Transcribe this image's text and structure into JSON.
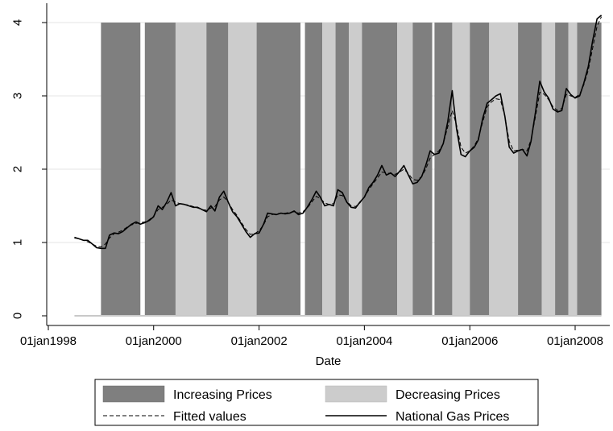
{
  "chart_data": {
    "type": "area",
    "xlabel": "Date",
    "ylabel": "",
    "xlim": [
      "1998-01-01",
      "2008-07-01"
    ],
    "ylim": [
      0,
      4.1
    ],
    "x_ticks": [
      "01jan1998",
      "01jan2000",
      "01jan2002",
      "01jan2004",
      "01jan2006",
      "01jan2008"
    ],
    "y_ticks": [
      "0",
      "1",
      "2",
      "3",
      "4"
    ],
    "grid": "horizontal",
    "legend_position": "bottom",
    "colors": {
      "increasing": "#7f7f7f",
      "decreasing": "#cccccc",
      "line": "#000000",
      "grid": "#e6e6e6"
    },
    "legend": {
      "increasing": "Increasing Prices",
      "decreasing": "Decreasing Prices",
      "fitted": "Fitted values",
      "actual": "National Gas Prices"
    },
    "band_height": 4,
    "bands": [
      {
        "start": "1999-01-01",
        "end": "1999-10-01",
        "type": "increasing"
      },
      {
        "start": "1999-11-01",
        "end": "2000-06-01",
        "type": "increasing"
      },
      {
        "start": "2000-06-01",
        "end": "2001-01-01",
        "type": "decreasing"
      },
      {
        "start": "2001-01-01",
        "end": "2001-06-01",
        "type": "increasing"
      },
      {
        "start": "2001-06-01",
        "end": "2001-12-15",
        "type": "decreasing"
      },
      {
        "start": "2001-12-15",
        "end": "2002-10-15",
        "type": "increasing"
      },
      {
        "start": "2002-11-15",
        "end": "2003-03-15",
        "type": "increasing"
      },
      {
        "start": "2003-03-15",
        "end": "2003-06-15",
        "type": "decreasing"
      },
      {
        "start": "2003-06-15",
        "end": "2003-09-15",
        "type": "increasing"
      },
      {
        "start": "2003-09-15",
        "end": "2003-12-15",
        "type": "decreasing"
      },
      {
        "start": "2003-12-15",
        "end": "2004-08-15",
        "type": "increasing"
      },
      {
        "start": "2004-08-15",
        "end": "2004-12-01",
        "type": "decreasing"
      },
      {
        "start": "2004-12-01",
        "end": "2005-04-15",
        "type": "increasing"
      },
      {
        "start": "2005-05-01",
        "end": "2005-09-01",
        "type": "increasing"
      },
      {
        "start": "2005-09-01",
        "end": "2006-01-01",
        "type": "decreasing"
      },
      {
        "start": "2006-01-01",
        "end": "2006-05-15",
        "type": "increasing"
      },
      {
        "start": "2006-05-15",
        "end": "2006-12-01",
        "type": "decreasing"
      },
      {
        "start": "2006-12-01",
        "end": "2007-05-15",
        "type": "increasing"
      },
      {
        "start": "2007-05-15",
        "end": "2007-08-15",
        "type": "decreasing"
      },
      {
        "start": "2007-08-15",
        "end": "2007-11-15",
        "type": "increasing"
      },
      {
        "start": "2007-11-15",
        "end": "2008-01-15",
        "type": "decreasing"
      },
      {
        "start": "2008-01-15",
        "end": "2008-07-01",
        "type": "increasing"
      }
    ],
    "series": [
      {
        "name": "National Gas Prices",
        "style": "solid",
        "x": [
          "1998-07-01",
          "1998-08-01",
          "1998-09-01",
          "1998-10-01",
          "1998-11-01",
          "1998-12-01",
          "1999-01-01",
          "1999-02-01",
          "1999-03-01",
          "1999-04-01",
          "1999-05-01",
          "1999-06-01",
          "1999-07-01",
          "1999-08-01",
          "1999-09-01",
          "1999-10-01",
          "1999-11-01",
          "1999-12-01",
          "2000-01-01",
          "2000-02-01",
          "2000-03-01",
          "2000-04-01",
          "2000-05-01",
          "2000-06-01",
          "2000-07-01",
          "2000-08-01",
          "2000-09-01",
          "2000-10-01",
          "2000-11-01",
          "2000-12-01",
          "2001-01-01",
          "2001-02-01",
          "2001-03-01",
          "2001-04-01",
          "2001-05-01",
          "2001-06-01",
          "2001-07-01",
          "2001-08-01",
          "2001-09-01",
          "2001-10-01",
          "2001-11-01",
          "2001-12-01",
          "2002-01-01",
          "2002-02-01",
          "2002-03-01",
          "2002-04-01",
          "2002-05-01",
          "2002-06-01",
          "2002-07-01",
          "2002-08-01",
          "2002-09-01",
          "2002-10-01",
          "2002-11-01",
          "2002-12-01",
          "2003-01-01",
          "2003-02-01",
          "2003-03-01",
          "2003-04-01",
          "2003-05-01",
          "2003-06-01",
          "2003-07-01",
          "2003-08-01",
          "2003-09-01",
          "2003-10-01",
          "2003-11-01",
          "2003-12-01",
          "2004-01-01",
          "2004-02-01",
          "2004-03-01",
          "2004-04-01",
          "2004-05-01",
          "2004-06-01",
          "2004-07-01",
          "2004-08-01",
          "2004-09-01",
          "2004-10-01",
          "2004-11-01",
          "2004-12-01",
          "2005-01-01",
          "2005-02-01",
          "2005-03-01",
          "2005-04-01",
          "2005-05-01",
          "2005-06-01",
          "2005-07-01",
          "2005-08-01",
          "2005-09-01",
          "2005-10-01",
          "2005-11-01",
          "2005-12-01",
          "2006-01-01",
          "2006-02-01",
          "2006-03-01",
          "2006-04-01",
          "2006-05-01",
          "2006-06-01",
          "2006-07-01",
          "2006-08-01",
          "2006-09-01",
          "2006-10-01",
          "2006-11-01",
          "2006-12-01",
          "2007-01-01",
          "2007-02-01",
          "2007-03-01",
          "2007-04-01",
          "2007-05-01",
          "2007-06-01",
          "2007-07-01",
          "2007-08-01",
          "2007-09-01",
          "2007-10-01",
          "2007-11-01",
          "2007-12-01",
          "2008-01-01",
          "2008-02-01",
          "2008-03-01",
          "2008-04-01",
          "2008-05-01",
          "2008-06-01",
          "2008-07-01"
        ],
        "values": [
          1.07,
          1.05,
          1.03,
          1.03,
          0.98,
          0.93,
          0.92,
          0.92,
          1.1,
          1.13,
          1.12,
          1.15,
          1.2,
          1.25,
          1.28,
          1.25,
          1.27,
          1.3,
          1.35,
          1.5,
          1.45,
          1.55,
          1.68,
          1.5,
          1.53,
          1.52,
          1.5,
          1.48,
          1.48,
          1.45,
          1.42,
          1.5,
          1.43,
          1.62,
          1.7,
          1.55,
          1.42,
          1.35,
          1.25,
          1.15,
          1.07,
          1.12,
          1.13,
          1.25,
          1.4,
          1.39,
          1.38,
          1.4,
          1.39,
          1.4,
          1.43,
          1.38,
          1.4,
          1.48,
          1.58,
          1.7,
          1.62,
          1.5,
          1.52,
          1.5,
          1.72,
          1.68,
          1.55,
          1.48,
          1.47,
          1.55,
          1.62,
          1.75,
          1.82,
          1.92,
          2.05,
          1.92,
          1.95,
          1.9,
          1.97,
          2.05,
          1.92,
          1.8,
          1.82,
          1.9,
          2.05,
          2.25,
          2.2,
          2.22,
          2.35,
          2.65,
          3.07,
          2.55,
          2.2,
          2.17,
          2.25,
          2.3,
          2.4,
          2.7,
          2.9,
          2.95,
          3.0,
          3.03,
          2.72,
          2.3,
          2.22,
          2.25,
          2.27,
          2.18,
          2.38,
          2.78,
          3.2,
          3.05,
          2.97,
          2.82,
          2.78,
          2.8,
          3.1,
          3.02,
          2.97,
          3.0,
          3.17,
          3.4,
          3.75,
          4.05,
          4.1
        ]
      },
      {
        "name": "Fitted values",
        "style": "dashed",
        "x": [
          "1998-07-01",
          "1998-08-01",
          "1998-09-01",
          "1998-10-01",
          "1998-11-01",
          "1998-12-01",
          "1999-01-01",
          "1999-02-01",
          "1999-03-01",
          "1999-04-01",
          "1999-05-01",
          "1999-06-01",
          "1999-07-01",
          "1999-08-01",
          "1999-09-01",
          "1999-10-01",
          "1999-11-01",
          "1999-12-01",
          "2000-01-01",
          "2000-02-01",
          "2000-03-01",
          "2000-04-01",
          "2000-05-01",
          "2000-06-01",
          "2000-07-01",
          "2000-08-01",
          "2000-09-01",
          "2000-10-01",
          "2000-11-01",
          "2000-12-01",
          "2001-01-01",
          "2001-02-01",
          "2001-03-01",
          "2001-04-01",
          "2001-05-01",
          "2001-06-01",
          "2001-07-01",
          "2001-08-01",
          "2001-09-01",
          "2001-10-01",
          "2001-11-01",
          "2001-12-01",
          "2002-01-01",
          "2002-02-01",
          "2002-03-01",
          "2002-04-01",
          "2002-05-01",
          "2002-06-01",
          "2002-07-01",
          "2002-08-01",
          "2002-09-01",
          "2002-10-01",
          "2002-11-01",
          "2002-12-01",
          "2003-01-01",
          "2003-02-01",
          "2003-03-01",
          "2003-04-01",
          "2003-05-01",
          "2003-06-01",
          "2003-07-01",
          "2003-08-01",
          "2003-09-01",
          "2003-10-01",
          "2003-11-01",
          "2003-12-01",
          "2004-01-01",
          "2004-02-01",
          "2004-03-01",
          "2004-04-01",
          "2004-05-01",
          "2004-06-01",
          "2004-07-01",
          "2004-08-01",
          "2004-09-01",
          "2004-10-01",
          "2004-11-01",
          "2004-12-01",
          "2005-01-01",
          "2005-02-01",
          "2005-03-01",
          "2005-04-01",
          "2005-05-01",
          "2005-06-01",
          "2005-07-01",
          "2005-08-01",
          "2005-09-01",
          "2005-10-01",
          "2005-11-01",
          "2005-12-01",
          "2006-01-01",
          "2006-02-01",
          "2006-03-01",
          "2006-04-01",
          "2006-05-01",
          "2006-06-01",
          "2006-07-01",
          "2006-08-01",
          "2006-09-01",
          "2006-10-01",
          "2006-11-01",
          "2006-12-01",
          "2007-01-01",
          "2007-02-01",
          "2007-03-01",
          "2007-04-01",
          "2007-05-01",
          "2007-06-01",
          "2007-07-01",
          "2007-08-01",
          "2007-09-01",
          "2007-10-01",
          "2007-11-01",
          "2007-12-01",
          "2008-01-01",
          "2008-02-01",
          "2008-03-01",
          "2008-04-01",
          "2008-05-01",
          "2008-06-01",
          "2008-07-01"
        ],
        "values": [
          1.06,
          1.05,
          1.03,
          1.01,
          0.98,
          0.95,
          0.94,
          0.98,
          1.06,
          1.12,
          1.14,
          1.17,
          1.21,
          1.24,
          1.26,
          1.27,
          1.28,
          1.31,
          1.36,
          1.45,
          1.48,
          1.52,
          1.58,
          1.55,
          1.53,
          1.52,
          1.51,
          1.49,
          1.47,
          1.45,
          1.44,
          1.47,
          1.49,
          1.58,
          1.62,
          1.55,
          1.45,
          1.37,
          1.27,
          1.18,
          1.11,
          1.12,
          1.16,
          1.24,
          1.35,
          1.38,
          1.39,
          1.4,
          1.4,
          1.41,
          1.42,
          1.4,
          1.42,
          1.47,
          1.55,
          1.63,
          1.6,
          1.54,
          1.52,
          1.53,
          1.65,
          1.64,
          1.56,
          1.5,
          1.49,
          1.54,
          1.62,
          1.72,
          1.8,
          1.88,
          1.96,
          1.95,
          1.94,
          1.93,
          1.96,
          2.0,
          1.94,
          1.86,
          1.85,
          1.9,
          2.0,
          2.15,
          2.2,
          2.25,
          2.35,
          2.58,
          2.8,
          2.6,
          2.3,
          2.22,
          2.25,
          2.32,
          2.42,
          2.65,
          2.85,
          2.92,
          2.96,
          2.95,
          2.72,
          2.38,
          2.25,
          2.26,
          2.27,
          2.25,
          2.4,
          2.72,
          3.05,
          3.02,
          2.95,
          2.85,
          2.8,
          2.83,
          3.02,
          3.0,
          2.98,
          3.02,
          3.15,
          3.35,
          3.65,
          3.95,
          4.08
        ]
      }
    ]
  }
}
